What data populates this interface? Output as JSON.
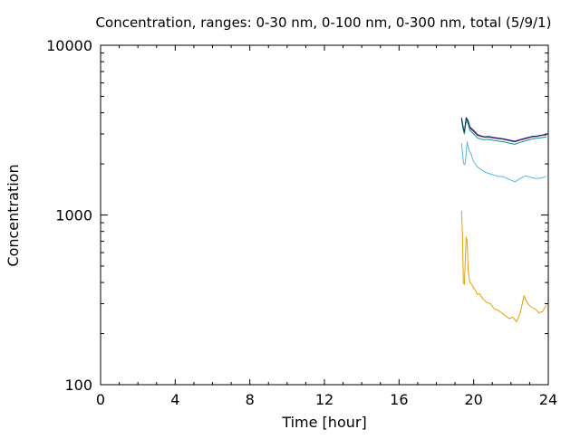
{
  "chart_data": {
    "type": "line",
    "title": "Concentration, ranges: 0-30 nm, 0-100 nm, 0-300 nm, total (5/9/1)",
    "xlabel": "Time [hour]",
    "ylabel": "Concentration",
    "xlim": [
      0,
      24
    ],
    "ylim": [
      100,
      10000
    ],
    "y_scale": "log",
    "grid": false,
    "legend": "none",
    "x_ticks": [
      0,
      4,
      8,
      12,
      16,
      20,
      24
    ],
    "x_tick_labels": [
      "0",
      "4",
      "8",
      "12",
      "16",
      "20",
      "24"
    ],
    "y_ticks": [
      100,
      1000,
      10000
    ],
    "y_tick_labels": [
      "100",
      "1000",
      "10000"
    ],
    "series": [
      {
        "color": "#e69f00",
        "x": [
          19.35,
          19.4,
          19.45,
          19.5,
          19.55,
          19.6,
          19.65,
          19.7,
          19.75,
          19.8,
          19.9,
          20.0,
          20.1,
          20.2,
          20.3,
          20.5,
          20.7,
          20.9,
          21.1,
          21.3,
          21.5,
          21.7,
          21.9,
          22.1,
          22.3,
          22.5,
          22.7,
          22.9,
          23.1,
          23.3,
          23.5,
          23.7,
          23.9
        ],
        "values": [
          1060,
          760,
          400,
          390,
          540,
          740,
          700,
          480,
          430,
          400,
          390,
          370,
          360,
          340,
          345,
          320,
          305,
          300,
          280,
          275,
          265,
          255,
          245,
          250,
          235,
          265,
          335,
          300,
          285,
          280,
          265,
          270,
          295
        ]
      },
      {
        "color": "#56b4e9",
        "x": [
          19.35,
          19.45,
          19.5,
          19.55,
          19.65,
          19.75,
          19.85,
          20.0,
          20.2,
          20.4,
          20.6,
          20.8,
          21.0,
          21.3,
          21.6,
          21.9,
          22.2,
          22.5,
          22.8,
          23.1,
          23.4,
          23.7,
          23.9
        ],
        "values": [
          2650,
          2050,
          1980,
          2000,
          2700,
          2400,
          2300,
          2050,
          1920,
          1850,
          1790,
          1760,
          1730,
          1690,
          1680,
          1620,
          1570,
          1640,
          1700,
          1660,
          1640,
          1660,
          1690
        ]
      },
      {
        "color": "#9400d3",
        "x": [
          19.35,
          19.45,
          19.5,
          19.6,
          19.7,
          19.8,
          20.0,
          20.2,
          20.4,
          20.6,
          20.8,
          21.0,
          21.3,
          21.6,
          21.9,
          22.2,
          22.5,
          22.8,
          23.1,
          23.4,
          23.7,
          23.9
        ],
        "values": [
          3700,
          3200,
          3050,
          3700,
          3550,
          3250,
          3100,
          2950,
          2900,
          2870,
          2880,
          2850,
          2820,
          2790,
          2740,
          2700,
          2760,
          2820,
          2880,
          2900,
          2950,
          2960
        ]
      },
      {
        "color": "#009e73",
        "x": [
          19.35,
          19.45,
          19.5,
          19.6,
          19.7,
          19.8,
          20.0,
          20.2,
          20.4,
          20.6,
          20.8,
          21.0,
          21.3,
          21.6,
          21.9,
          22.2,
          22.5,
          22.8,
          23.1,
          23.4,
          23.7,
          23.9
        ],
        "values": [
          3600,
          3150,
          3000,
          3600,
          3450,
          3150,
          3000,
          2850,
          2800,
          2780,
          2790,
          2760,
          2730,
          2700,
          2650,
          2610,
          2680,
          2740,
          2800,
          2830,
          2860,
          2880
        ]
      },
      {
        "color": "#102c5a",
        "x": [
          19.35,
          19.45,
          19.5,
          19.6,
          19.7,
          19.8,
          20.0,
          20.2,
          20.4,
          20.6,
          20.8,
          21.0,
          21.3,
          21.6,
          21.9,
          22.2,
          22.5,
          22.8,
          23.1,
          23.4,
          23.7,
          23.9
        ],
        "values": [
          3750,
          3250,
          3100,
          3750,
          3600,
          3300,
          3150,
          2980,
          2920,
          2890,
          2900,
          2870,
          2840,
          2810,
          2760,
          2720,
          2780,
          2840,
          2900,
          2920,
          2960,
          2980
        ]
      }
    ]
  }
}
